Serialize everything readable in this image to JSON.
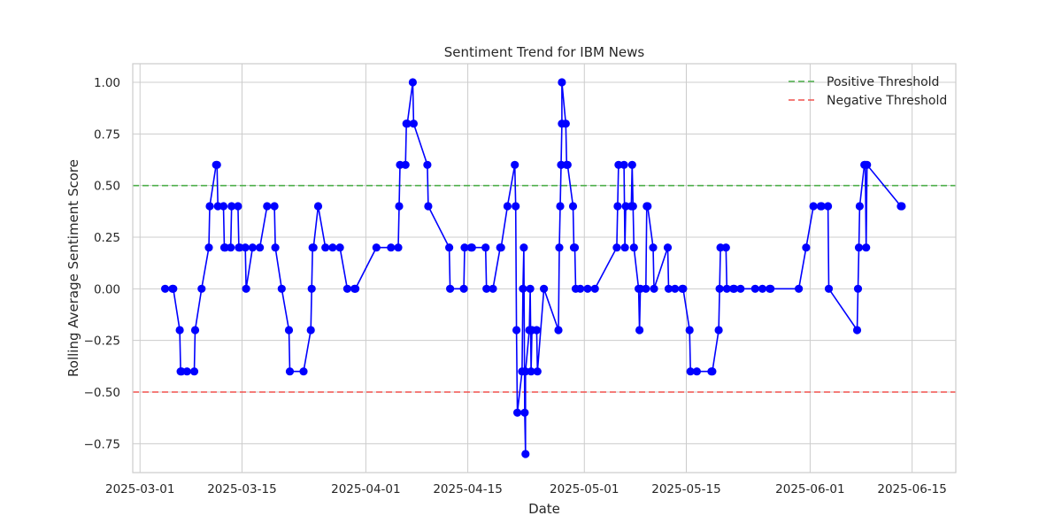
{
  "chart_data": {
    "type": "line",
    "title": "Sentiment Trend for IBM News",
    "xlabel": "Date",
    "ylabel": "Rolling Average Sentiment Score",
    "x_ticks": [
      "2025-03-01",
      "2025-03-15",
      "2025-04-01",
      "2025-04-15",
      "2025-05-01",
      "2025-05-15",
      "2025-06-01",
      "2025-06-15"
    ],
    "y_ticks": [
      -0.75,
      -0.5,
      -0.25,
      0.0,
      0.25,
      0.5,
      0.75,
      1.0
    ],
    "y_tick_labels": [
      "−0.75",
      "−0.50",
      "−0.25",
      "0.00",
      "0.25",
      "0.50",
      "0.75",
      "1.00"
    ],
    "xlim": [
      "2025-02-28",
      "2025-06-21"
    ],
    "ylim": [
      -0.89,
      1.09
    ],
    "grid": true,
    "legend_position": "top-right",
    "colors": {
      "series": "#0000ff",
      "positive": "#4daf4a",
      "negative": "#f0504d",
      "grid": "#cccccc",
      "frame": "#cccccc"
    },
    "thresholds": [
      {
        "name": "Positive Threshold",
        "value": 0.5,
        "color": "#4daf4a"
      },
      {
        "name": "Negative Threshold",
        "value": -0.5,
        "color": "#f0504d"
      }
    ],
    "series": [
      {
        "color": "#0000ff",
        "points": [
          [
            "2025-03-04",
            0.0
          ],
          [
            "2025-03-05",
            0.0
          ],
          [
            "2025-03-05",
            0.0
          ],
          [
            "2025-03-06",
            -0.2
          ],
          [
            "2025-03-06",
            -0.4
          ],
          [
            "2025-03-06",
            -0.4
          ],
          [
            "2025-03-07",
            -0.4
          ],
          [
            "2025-03-08",
            -0.4
          ],
          [
            "2025-03-08",
            -0.2
          ],
          [
            "2025-03-09",
            0.0
          ],
          [
            "2025-03-10",
            0.2
          ],
          [
            "2025-03-10",
            0.4
          ],
          [
            "2025-03-11",
            0.6
          ],
          [
            "2025-03-11",
            0.6
          ],
          [
            "2025-03-11",
            0.4
          ],
          [
            "2025-03-12",
            0.4
          ],
          [
            "2025-03-12",
            0.2
          ],
          [
            "2025-03-12",
            0.2
          ],
          [
            "2025-03-13",
            0.2
          ],
          [
            "2025-03-13",
            0.4
          ],
          [
            "2025-03-14",
            0.4
          ],
          [
            "2025-03-14",
            0.2
          ],
          [
            "2025-03-14",
            0.2
          ],
          [
            "2025-03-15",
            0.2
          ],
          [
            "2025-03-15",
            0.0
          ],
          [
            "2025-03-16",
            0.2
          ],
          [
            "2025-03-17",
            0.2
          ],
          [
            "2025-03-18",
            0.4
          ],
          [
            "2025-03-19",
            0.4
          ],
          [
            "2025-03-19",
            0.2
          ],
          [
            "2025-03-20",
            0.0
          ],
          [
            "2025-03-21",
            -0.2
          ],
          [
            "2025-03-21",
            -0.4
          ],
          [
            "2025-03-23",
            -0.4
          ],
          [
            "2025-03-24",
            -0.2
          ],
          [
            "2025-03-24",
            0.0
          ],
          [
            "2025-03-24",
            0.2
          ],
          [
            "2025-03-24",
            0.2
          ],
          [
            "2025-03-25",
            0.4
          ],
          [
            "2025-03-26",
            0.2
          ],
          [
            "2025-03-27",
            0.2
          ],
          [
            "2025-03-28",
            0.2
          ],
          [
            "2025-03-29",
            0.0
          ],
          [
            "2025-03-30",
            0.0
          ],
          [
            "2025-03-30",
            0.0
          ],
          [
            "2025-04-02",
            0.2
          ],
          [
            "2025-04-04",
            0.2
          ],
          [
            "2025-04-05",
            0.2
          ],
          [
            "2025-04-05",
            0.4
          ],
          [
            "2025-04-05",
            0.6
          ],
          [
            "2025-04-06",
            0.6
          ],
          [
            "2025-04-06",
            0.8
          ],
          [
            "2025-04-06",
            0.8
          ],
          [
            "2025-04-07",
            1.0
          ],
          [
            "2025-04-07",
            0.8
          ],
          [
            "2025-04-09",
            0.6
          ],
          [
            "2025-04-09",
            0.4
          ],
          [
            "2025-04-12",
            0.2
          ],
          [
            "2025-04-12",
            0.0
          ],
          [
            "2025-04-14",
            0.0
          ],
          [
            "2025-04-14",
            0.2
          ],
          [
            "2025-04-15",
            0.2
          ],
          [
            "2025-04-15",
            0.2
          ],
          [
            "2025-04-17",
            0.2
          ],
          [
            "2025-04-17",
            0.0
          ],
          [
            "2025-04-18",
            0.0
          ],
          [
            "2025-04-19",
            0.2
          ],
          [
            "2025-04-19",
            0.2
          ],
          [
            "2025-04-20",
            0.4
          ],
          [
            "2025-04-21",
            0.6
          ],
          [
            "2025-04-21",
            0.4
          ],
          [
            "2025-04-21",
            -0.2
          ],
          [
            "2025-04-21",
            -0.6
          ],
          [
            "2025-04-22",
            -0.4
          ],
          [
            "2025-04-22",
            0.0
          ],
          [
            "2025-04-22",
            0.2
          ],
          [
            "2025-04-22",
            -0.6
          ],
          [
            "2025-04-22",
            -0.8
          ],
          [
            "2025-04-22",
            -0.4
          ],
          [
            "2025-04-23",
            -0.2
          ],
          [
            "2025-04-23",
            0.0
          ],
          [
            "2025-04-23",
            -0.4
          ],
          [
            "2025-04-23",
            -0.2
          ],
          [
            "2025-04-24",
            -0.2
          ],
          [
            "2025-04-24",
            -0.4
          ],
          [
            "2025-04-25",
            0.0
          ],
          [
            "2025-04-27",
            -0.2
          ],
          [
            "2025-04-27",
            0.2
          ],
          [
            "2025-04-27",
            0.4
          ],
          [
            "2025-04-27",
            0.6
          ],
          [
            "2025-04-27",
            0.8
          ],
          [
            "2025-04-27",
            1.0
          ],
          [
            "2025-04-28",
            0.8
          ],
          [
            "2025-04-28",
            0.6
          ],
          [
            "2025-04-28",
            0.6
          ],
          [
            "2025-04-29",
            0.4
          ],
          [
            "2025-04-29",
            0.2
          ],
          [
            "2025-04-29",
            0.2
          ],
          [
            "2025-04-29",
            0.0
          ],
          [
            "2025-04-30",
            0.0
          ],
          [
            "2025-05-01",
            0.0
          ],
          [
            "2025-05-02",
            0.0
          ],
          [
            "2025-05-05",
            0.2
          ],
          [
            "2025-05-05",
            0.4
          ],
          [
            "2025-05-05",
            0.6
          ],
          [
            "2025-05-06",
            0.6
          ],
          [
            "2025-05-06",
            0.2
          ],
          [
            "2025-05-06",
            0.4
          ],
          [
            "2025-05-07",
            0.4
          ],
          [
            "2025-05-07",
            0.6
          ],
          [
            "2025-05-07",
            0.4
          ],
          [
            "2025-05-07",
            0.2
          ],
          [
            "2025-05-08",
            0.0
          ],
          [
            "2025-05-08",
            -0.2
          ],
          [
            "2025-05-08",
            0.0
          ],
          [
            "2025-05-09",
            0.0
          ],
          [
            "2025-05-09",
            0.4
          ],
          [
            "2025-05-09",
            0.4
          ],
          [
            "2025-05-10",
            0.2
          ],
          [
            "2025-05-10",
            0.0
          ],
          [
            "2025-05-12",
            0.2
          ],
          [
            "2025-05-12",
            0.0
          ],
          [
            "2025-05-13",
            0.0
          ],
          [
            "2025-05-14",
            0.0
          ],
          [
            "2025-05-14",
            0.0
          ],
          [
            "2025-05-15",
            -0.2
          ],
          [
            "2025-05-15",
            -0.4
          ],
          [
            "2025-05-16",
            -0.4
          ],
          [
            "2025-05-18",
            -0.4
          ],
          [
            "2025-05-18",
            -0.4
          ],
          [
            "2025-05-19",
            -0.2
          ],
          [
            "2025-05-19",
            0.0
          ],
          [
            "2025-05-19",
            0.2
          ],
          [
            "2025-05-20",
            0.2
          ],
          [
            "2025-05-20",
            0.0
          ],
          [
            "2025-05-21",
            0.0
          ],
          [
            "2025-05-21",
            0.0
          ],
          [
            "2025-05-22",
            0.0
          ],
          [
            "2025-05-24",
            0.0
          ],
          [
            "2025-05-25",
            0.0
          ],
          [
            "2025-05-26",
            0.0
          ],
          [
            "2025-05-26",
            0.0
          ],
          [
            "2025-05-30",
            0.0
          ],
          [
            "2025-05-31",
            0.2
          ],
          [
            "2025-06-01",
            0.4
          ],
          [
            "2025-06-02",
            0.4
          ],
          [
            "2025-06-02",
            0.4
          ],
          [
            "2025-06-03",
            0.4
          ],
          [
            "2025-06-03",
            0.0
          ],
          [
            "2025-06-07",
            -0.2
          ],
          [
            "2025-06-07",
            0.0
          ],
          [
            "2025-06-07",
            0.2
          ],
          [
            "2025-06-07",
            0.4
          ],
          [
            "2025-06-08",
            0.6
          ],
          [
            "2025-06-08",
            0.6
          ],
          [
            "2025-06-08",
            0.2
          ],
          [
            "2025-06-08",
            0.6
          ],
          [
            "2025-06-13",
            0.4
          ],
          [
            "2025-06-13",
            0.4
          ]
        ]
      }
    ]
  }
}
